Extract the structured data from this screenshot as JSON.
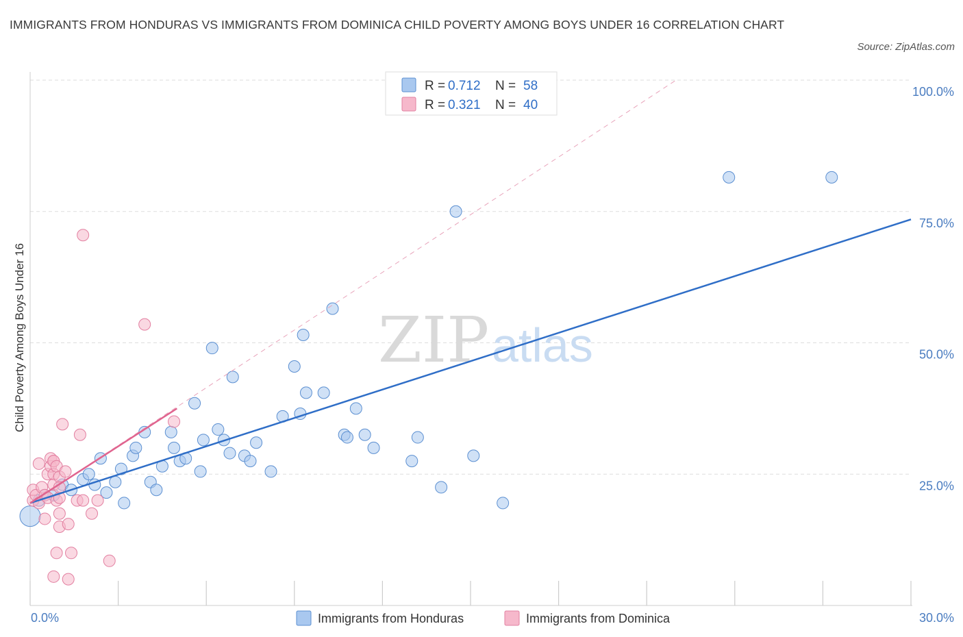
{
  "title": "IMMIGRANTS FROM HONDURAS VS IMMIGRANTS FROM DOMINICA CHILD POVERTY AMONG BOYS UNDER 16 CORRELATION CHART",
  "source": "Source: ZipAtlas.com",
  "watermark": {
    "zip": "ZIP",
    "atlas": "atlas"
  },
  "colors": {
    "honduras": "#a9c8ef",
    "honduras_stroke": "#5b8fd1",
    "honduras_line": "#2f6ec7",
    "dominica": "#f6b8cb",
    "dominica_stroke": "#e27fa0",
    "dominica_line": "#e0648f",
    "grid": "#dddddd",
    "tick_text": "#4a7cc0"
  },
  "legend": {
    "items": [
      {
        "r_label": "R = ",
        "r_value": "0.712",
        "n_label": "N = ",
        "n_value": "58"
      },
      {
        "r_label": "R = ",
        "r_value": "0.321",
        "n_label": "N = ",
        "n_value": "40"
      }
    ]
  },
  "chart_data": {
    "type": "scatter",
    "title": "IMMIGRANTS FROM HONDURAS VS IMMIGRANTS FROM DOMINICA CHILD POVERTY AMONG BOYS UNDER 16 CORRELATION CHART",
    "xlabel": "",
    "ylabel": "Child Poverty Among Boys Under 16",
    "xlim": [
      0,
      30
    ],
    "ylim": [
      0,
      100
    ],
    "x_tick_labels": [
      "0.0%",
      "30.0%"
    ],
    "y_ticks": [
      25,
      50,
      75,
      100
    ],
    "y_tick_labels": [
      "25.0%",
      "50.0%",
      "75.0%",
      "100.0%"
    ],
    "grid": true,
    "legend_position": "top-center",
    "series": [
      {
        "name": "Immigrants from Honduras",
        "points": [
          [
            0.0,
            17.0
          ],
          [
            0.3,
            20.0
          ],
          [
            0.5,
            21.0
          ],
          [
            0.8,
            21.0
          ],
          [
            1.1,
            23.0
          ],
          [
            1.4,
            22.0
          ],
          [
            1.8,
            24.0
          ],
          [
            2.0,
            25.0
          ],
          [
            2.2,
            23.0
          ],
          [
            2.4,
            28.0
          ],
          [
            2.6,
            21.5
          ],
          [
            2.9,
            23.5
          ],
          [
            3.1,
            26.0
          ],
          [
            3.2,
            19.5
          ],
          [
            3.5,
            28.5
          ],
          [
            3.6,
            30.0
          ],
          [
            3.9,
            33.0
          ],
          [
            4.1,
            23.5
          ],
          [
            4.3,
            22.0
          ],
          [
            4.5,
            26.5
          ],
          [
            4.8,
            33.0
          ],
          [
            4.9,
            30.0
          ],
          [
            5.1,
            27.5
          ],
          [
            5.3,
            28.0
          ],
          [
            5.6,
            38.5
          ],
          [
            5.8,
            25.5
          ],
          [
            5.9,
            31.5
          ],
          [
            6.2,
            49.0
          ],
          [
            6.4,
            33.5
          ],
          [
            6.6,
            31.5
          ],
          [
            6.8,
            29.0
          ],
          [
            6.9,
            43.5
          ],
          [
            7.3,
            28.5
          ],
          [
            7.5,
            27.5
          ],
          [
            7.7,
            31.0
          ],
          [
            8.2,
            25.5
          ],
          [
            8.6,
            36.0
          ],
          [
            9.0,
            45.5
          ],
          [
            9.2,
            36.5
          ],
          [
            9.3,
            51.5
          ],
          [
            9.4,
            40.5
          ],
          [
            10.0,
            40.5
          ],
          [
            10.3,
            56.5
          ],
          [
            10.7,
            32.5
          ],
          [
            10.8,
            32.0
          ],
          [
            11.1,
            37.5
          ],
          [
            11.4,
            32.5
          ],
          [
            11.7,
            30.0
          ],
          [
            13.0,
            27.5
          ],
          [
            13.2,
            32.0
          ],
          [
            14.0,
            22.5
          ],
          [
            14.5,
            75.0
          ],
          [
            15.1,
            28.5
          ],
          [
            16.1,
            19.5
          ],
          [
            23.8,
            81.5
          ],
          [
            27.3,
            81.5
          ]
        ],
        "trend": [
          [
            0.0,
            19.5
          ],
          [
            30.0,
            73.5
          ]
        ],
        "R": 0.712,
        "N": 58
      },
      {
        "name": "Immigrants from Dominica",
        "points": [
          [
            0.1,
            20.0
          ],
          [
            0.1,
            22.0
          ],
          [
            0.2,
            21.0
          ],
          [
            0.3,
            27.0
          ],
          [
            0.3,
            19.5
          ],
          [
            0.4,
            22.5
          ],
          [
            0.5,
            16.5
          ],
          [
            0.5,
            21.0
          ],
          [
            0.6,
            25.0
          ],
          [
            0.6,
            20.5
          ],
          [
            0.7,
            28.0
          ],
          [
            0.7,
            26.5
          ],
          [
            0.8,
            25.0
          ],
          [
            0.8,
            27.5
          ],
          [
            0.8,
            27.5
          ],
          [
            0.8,
            23.0
          ],
          [
            0.8,
            5.5
          ],
          [
            0.9,
            26.5
          ],
          [
            0.9,
            10.0
          ],
          [
            0.9,
            20.0
          ],
          [
            1.0,
            24.5
          ],
          [
            1.0,
            20.5
          ],
          [
            1.0,
            17.5
          ],
          [
            1.0,
            22.5
          ],
          [
            1.0,
            15.0
          ],
          [
            1.1,
            34.5
          ],
          [
            1.2,
            25.5
          ],
          [
            1.3,
            5.0
          ],
          [
            1.3,
            15.5
          ],
          [
            1.4,
            10.0
          ],
          [
            1.6,
            20.0
          ],
          [
            1.7,
            32.5
          ],
          [
            1.8,
            20.0
          ],
          [
            1.8,
            70.5
          ],
          [
            2.1,
            17.5
          ],
          [
            2.3,
            20.0
          ],
          [
            2.7,
            8.5
          ],
          [
            3.9,
            53.5
          ],
          [
            4.9,
            35.0
          ]
        ],
        "trend": [
          [
            0.0,
            19.5
          ],
          [
            5.0,
            37.5
          ]
        ],
        "trend_extended": [
          [
            0.0,
            19.5
          ],
          [
            22.0,
            100.0
          ]
        ],
        "R": 0.321,
        "N": 40
      }
    ]
  }
}
